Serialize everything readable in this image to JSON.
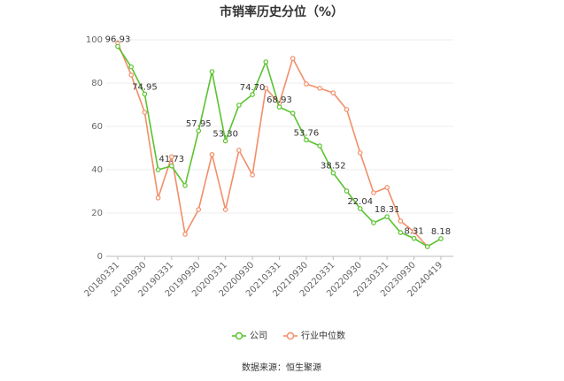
{
  "chart_data": {
    "type": "line",
    "title": "市销率历史分位（%）",
    "categories": [
      "20180331",
      null,
      "20180930",
      null,
      "20190331",
      null,
      "20190930",
      null,
      "20200331",
      null,
      "20200930",
      null,
      "20210331",
      null,
      "20210930",
      null,
      "20220331",
      null,
      "20220930",
      null,
      "20230331",
      null,
      "20230930",
      null,
      "20240419"
    ],
    "series": [
      {
        "name": "公司",
        "color": "#5ac32f",
        "values": [
          96.93,
          87.5,
          74.95,
          40,
          41.73,
          32.7,
          57.95,
          85.3,
          53.3,
          69.8,
          74.7,
          89.8,
          68.93,
          66.1,
          53.76,
          51,
          38.52,
          30.2,
          22.04,
          15.5,
          18.31,
          11,
          8.31,
          4.5,
          8.18
        ],
        "value_labels": [
          "96.93",
          null,
          "74.95",
          null,
          "41.73",
          null,
          "57.95",
          null,
          "53.30",
          null,
          "74.70",
          null,
          "68.93",
          null,
          "53.76",
          null,
          "38.52",
          null,
          "22.04",
          null,
          "18.31",
          null,
          "8.31",
          null,
          "8.18"
        ]
      },
      {
        "name": "行业中位数",
        "color": "#f28e68",
        "values": [
          98.5,
          83.7,
          66.5,
          27,
          46,
          10.2,
          21.6,
          47,
          21.6,
          49,
          37.6,
          77.6,
          70.6,
          91.4,
          79.6,
          77.6,
          75.5,
          67.8,
          47.8,
          29.4,
          31.8,
          16.3,
          11.4,
          4.5,
          null
        ]
      }
    ],
    "ylim": [
      0,
      100
    ],
    "yticks": [
      0,
      20,
      40,
      60,
      80,
      100
    ],
    "grid": true,
    "source": "数据来源：恒生聚源"
  }
}
